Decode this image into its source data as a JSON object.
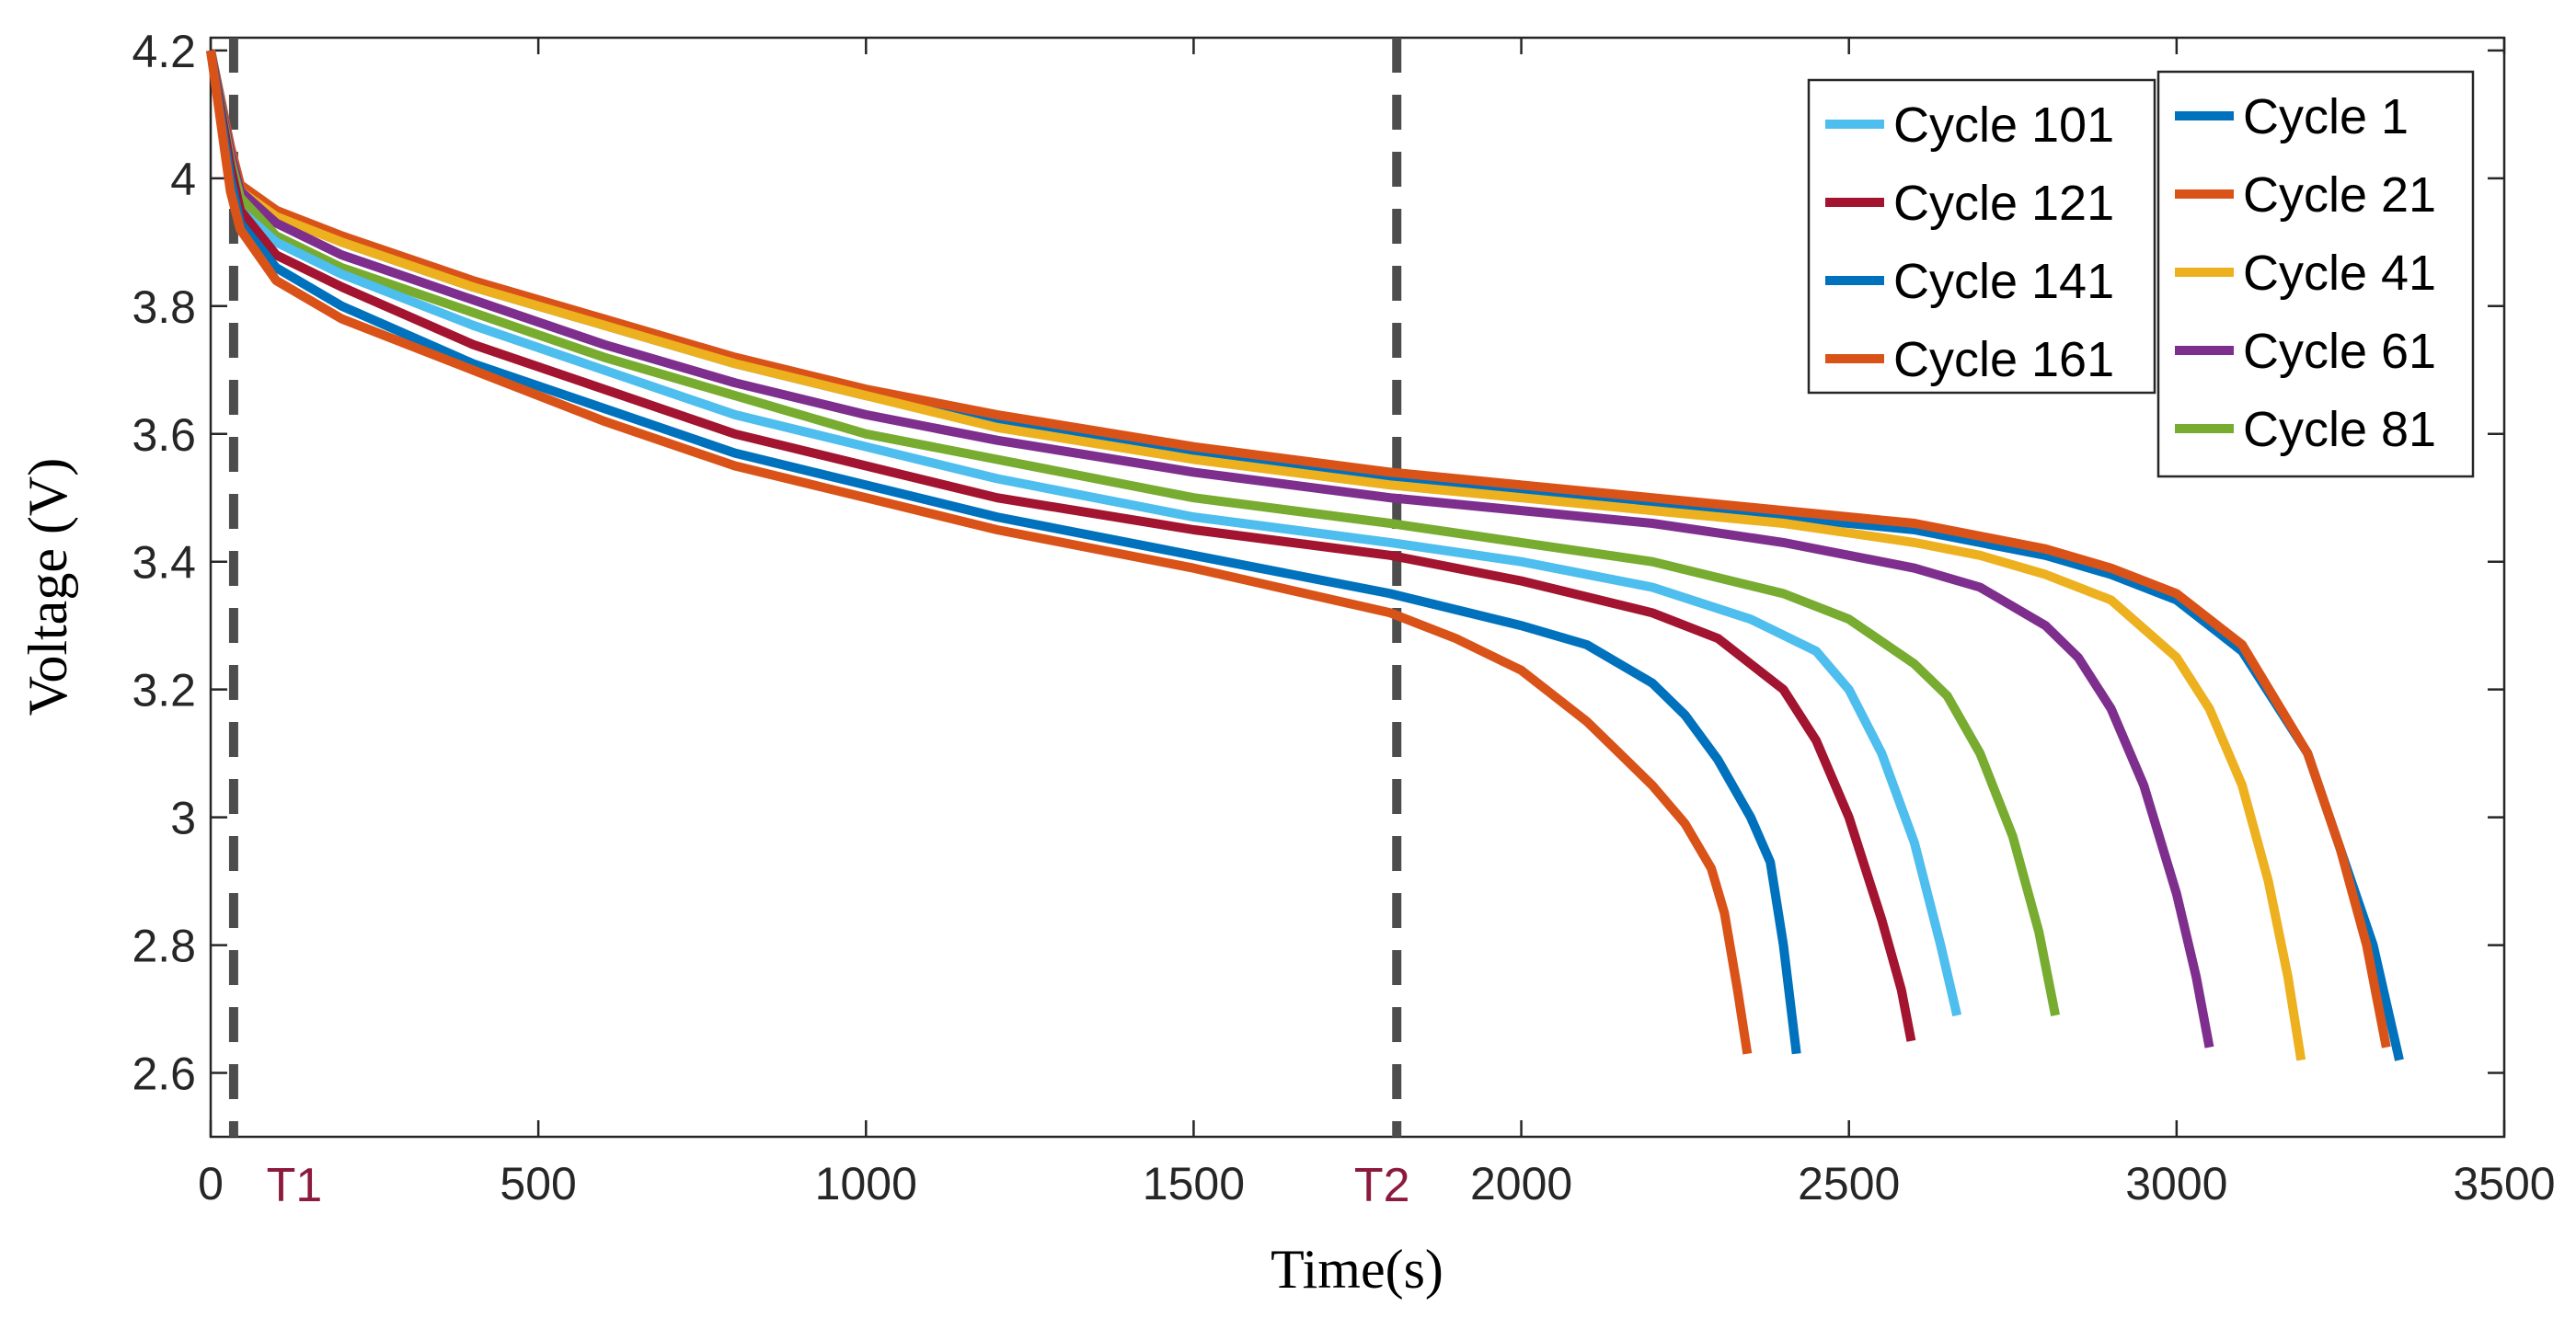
{
  "chart_data": {
    "type": "line",
    "xlabel": "Time(s)",
    "ylabel": "Voltage (V)",
    "xlim": [
      0,
      3500
    ],
    "ylim": [
      2.5,
      4.22
    ],
    "xticks": [
      0,
      500,
      1000,
      1500,
      2000,
      2500,
      3000,
      3500
    ],
    "xtick_labels": [
      "0",
      "500",
      "1000",
      "1500",
      "2000",
      "2500",
      "3000",
      "3500"
    ],
    "yticks": [
      2.6,
      2.8,
      3.0,
      3.2,
      3.4,
      3.6,
      3.8,
      4.0,
      4.2
    ],
    "ytick_labels": [
      "2.6",
      "2.8",
      "3",
      "3.2",
      "3.4",
      "3.6",
      "3.8",
      "4",
      "4.2"
    ],
    "grid": false,
    "markers": [
      {
        "label": "T1",
        "x": 35,
        "color": "#8b1a3c"
      },
      {
        "label": "T2",
        "x": 1810,
        "color": "#8b1a3c"
      }
    ],
    "series": [
      {
        "name": "Cycle 1",
        "color": "#0072bd",
        "legend": 2,
        "x": [
          0,
          30,
          45,
          100,
          200,
          400,
          600,
          800,
          1000,
          1200,
          1500,
          1800,
          2000,
          2200,
          2400,
          2600,
          2700,
          2800,
          2900,
          3000,
          3100,
          3200,
          3250,
          3300,
          3340
        ],
        "y": [
          4.2,
          4.05,
          3.99,
          3.95,
          3.9,
          3.83,
          3.77,
          3.71,
          3.66,
          3.62,
          3.57,
          3.53,
          3.51,
          3.49,
          3.47,
          3.45,
          3.43,
          3.41,
          3.38,
          3.34,
          3.26,
          3.1,
          2.95,
          2.8,
          2.62
        ]
      },
      {
        "name": "Cycle 21",
        "color": "#d95319",
        "legend": 2,
        "x": [
          0,
          30,
          45,
          100,
          200,
          400,
          600,
          800,
          1000,
          1200,
          1500,
          1800,
          2000,
          2200,
          2400,
          2600,
          2700,
          2800,
          2900,
          3000,
          3100,
          3200,
          3250,
          3290,
          3320
        ],
        "y": [
          4.2,
          4.05,
          3.99,
          3.95,
          3.91,
          3.84,
          3.78,
          3.72,
          3.67,
          3.63,
          3.58,
          3.54,
          3.52,
          3.5,
          3.48,
          3.46,
          3.44,
          3.42,
          3.39,
          3.35,
          3.27,
          3.1,
          2.95,
          2.8,
          2.64
        ]
      },
      {
        "name": "Cycle 41",
        "color": "#edb120",
        "legend": 2,
        "x": [
          0,
          30,
          45,
          100,
          200,
          400,
          600,
          800,
          1000,
          1200,
          1500,
          1800,
          2000,
          2200,
          2400,
          2600,
          2700,
          2800,
          2900,
          3000,
          3050,
          3100,
          3140,
          3170,
          3190
        ],
        "y": [
          4.2,
          4.04,
          3.98,
          3.94,
          3.9,
          3.83,
          3.77,
          3.71,
          3.66,
          3.61,
          3.56,
          3.52,
          3.5,
          3.48,
          3.46,
          3.43,
          3.41,
          3.38,
          3.34,
          3.25,
          3.17,
          3.05,
          2.9,
          2.75,
          2.62
        ]
      },
      {
        "name": "Cycle 61",
        "color": "#7e2f8e",
        "legend": 2,
        "x": [
          0,
          30,
          45,
          100,
          200,
          400,
          600,
          800,
          1000,
          1200,
          1500,
          1800,
          2000,
          2200,
          2400,
          2600,
          2700,
          2800,
          2850,
          2900,
          2950,
          3000,
          3030,
          3050
        ],
        "y": [
          4.2,
          4.04,
          3.98,
          3.93,
          3.88,
          3.81,
          3.74,
          3.68,
          3.63,
          3.59,
          3.54,
          3.5,
          3.48,
          3.46,
          3.43,
          3.39,
          3.36,
          3.3,
          3.25,
          3.17,
          3.05,
          2.88,
          2.75,
          2.64
        ]
      },
      {
        "name": "Cycle 81",
        "color": "#77ac30",
        "legend": 2,
        "x": [
          0,
          30,
          45,
          100,
          200,
          400,
          600,
          800,
          1000,
          1200,
          1500,
          1800,
          2000,
          2200,
          2400,
          2500,
          2600,
          2650,
          2700,
          2750,
          2790,
          2815
        ],
        "y": [
          4.2,
          4.03,
          3.97,
          3.91,
          3.86,
          3.79,
          3.72,
          3.66,
          3.6,
          3.56,
          3.5,
          3.46,
          3.43,
          3.4,
          3.35,
          3.31,
          3.24,
          3.19,
          3.1,
          2.97,
          2.82,
          2.69
        ]
      },
      {
        "name": "Cycle 101",
        "color": "#4dbeee",
        "legend": 1,
        "x": [
          0,
          30,
          45,
          100,
          200,
          400,
          600,
          800,
          1000,
          1200,
          1500,
          1800,
          2000,
          2200,
          2350,
          2450,
          2500,
          2550,
          2600,
          2640,
          2665
        ],
        "y": [
          4.2,
          4.02,
          3.95,
          3.9,
          3.85,
          3.77,
          3.7,
          3.63,
          3.58,
          3.53,
          3.47,
          3.43,
          3.4,
          3.36,
          3.31,
          3.26,
          3.2,
          3.1,
          2.96,
          2.8,
          2.69
        ]
      },
      {
        "name": "Cycle 121",
        "color": "#a2142f",
        "legend": 1,
        "x": [
          0,
          30,
          45,
          100,
          200,
          400,
          600,
          800,
          1000,
          1200,
          1500,
          1800,
          2000,
          2200,
          2300,
          2400,
          2450,
          2500,
          2550,
          2580,
          2595
        ],
        "y": [
          4.2,
          4.02,
          3.95,
          3.88,
          3.83,
          3.74,
          3.67,
          3.6,
          3.55,
          3.5,
          3.45,
          3.41,
          3.37,
          3.32,
          3.28,
          3.2,
          3.12,
          3.0,
          2.84,
          2.73,
          2.65
        ]
      },
      {
        "name": "Cycle 141",
        "color": "#0072bd",
        "legend": 1,
        "x": [
          0,
          30,
          45,
          100,
          200,
          400,
          600,
          800,
          1000,
          1200,
          1500,
          1800,
          2000,
          2100,
          2200,
          2250,
          2300,
          2350,
          2380,
          2400,
          2420
        ],
        "y": [
          4.2,
          4.0,
          3.93,
          3.86,
          3.8,
          3.71,
          3.64,
          3.57,
          3.52,
          3.47,
          3.41,
          3.35,
          3.3,
          3.27,
          3.21,
          3.16,
          3.09,
          3.0,
          2.93,
          2.8,
          2.63
        ]
      },
      {
        "name": "Cycle 161",
        "color": "#d95319",
        "legend": 1,
        "x": [
          0,
          30,
          45,
          100,
          200,
          400,
          600,
          800,
          1000,
          1200,
          1500,
          1800,
          1900,
          2000,
          2100,
          2150,
          2200,
          2250,
          2290,
          2310,
          2330,
          2345
        ],
        "y": [
          4.2,
          3.98,
          3.92,
          3.84,
          3.78,
          3.7,
          3.62,
          3.55,
          3.5,
          3.45,
          3.39,
          3.32,
          3.28,
          3.23,
          3.15,
          3.1,
          3.05,
          2.99,
          2.92,
          2.85,
          2.73,
          2.63
        ]
      }
    ]
  }
}
